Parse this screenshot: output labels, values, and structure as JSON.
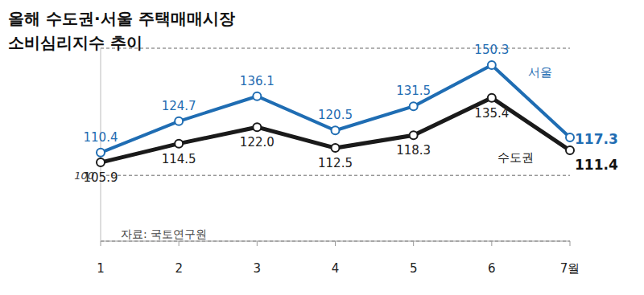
{
  "chart_data": {
    "type": "line",
    "title": "올해 수도권·서울 주택매매시장\n소비심리지수 추이",
    "source": "자료: 국토연구원",
    "categories": [
      "1",
      "2",
      "3",
      "4",
      "5",
      "6",
      "7월"
    ],
    "series": [
      {
        "name": "서울",
        "color": "#1f6db3",
        "marker": "circle",
        "values": [
          110.4,
          124.7,
          136.1,
          120.5,
          131.5,
          150.3,
          117.3
        ],
        "value_labels": [
          "110.4",
          "124.7",
          "136.1",
          "120.5",
          "131.5",
          "150.3",
          "117.3"
        ]
      },
      {
        "name": "수도권",
        "color": "#1a1a1a",
        "marker": "circle",
        "values": [
          105.9,
          114.5,
          122.0,
          112.5,
          118.3,
          135.4,
          111.4
        ],
        "value_labels": [
          "105.9",
          "114.5",
          "122.0",
          "112.5",
          "118.3",
          "135.4",
          "111.4"
        ]
      }
    ],
    "ylim": [
      70,
      158
    ],
    "yticks": [
      100
    ],
    "grid": true,
    "data_labels": true
  }
}
